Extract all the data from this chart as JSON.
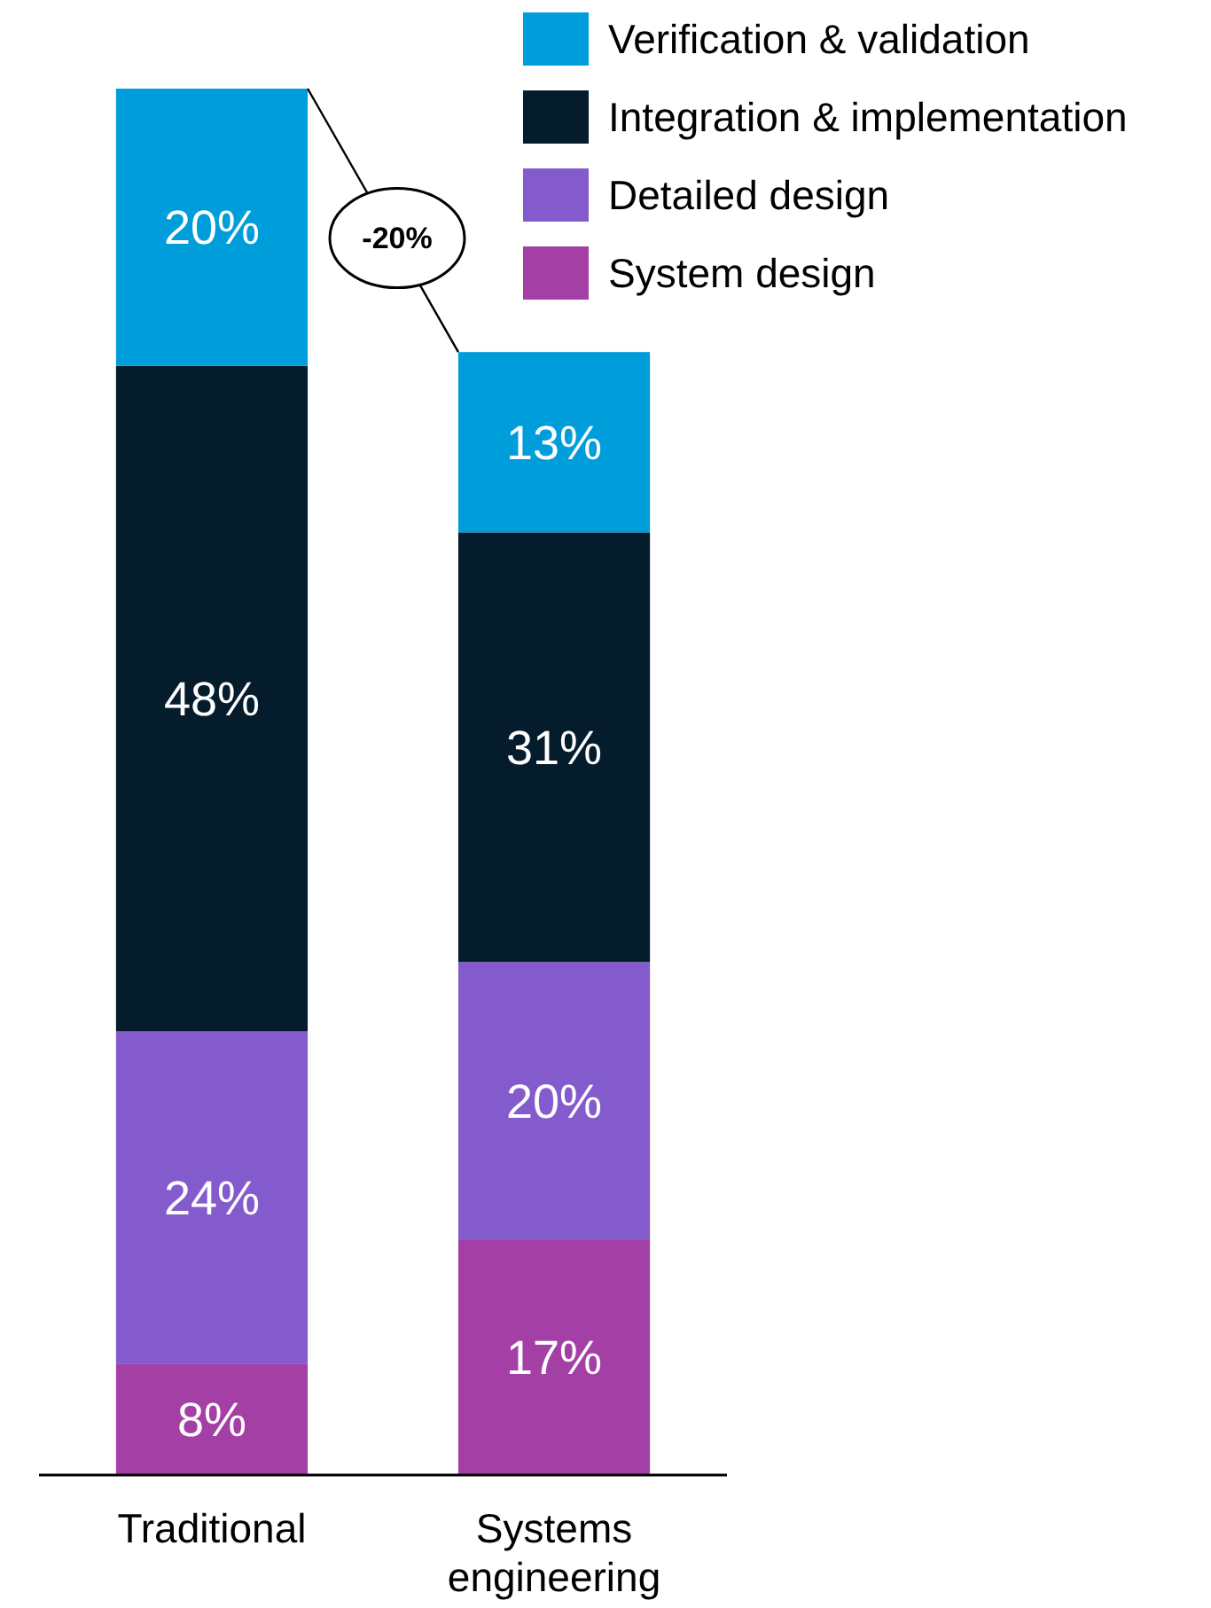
{
  "chart_data": {
    "type": "bar",
    "stacked": true,
    "categories": [
      "Traditional",
      "Systems engineering"
    ],
    "series": [
      {
        "name": "System design",
        "color": "#a43fa6",
        "values": [
          8,
          17
        ],
        "value_labels": [
          "8%",
          "17%"
        ]
      },
      {
        "name": "Detailed design",
        "color": "#835bcc",
        "values": [
          24,
          20
        ],
        "value_labels": [
          "24%",
          "20%"
        ]
      },
      {
        "name": "Integration & implementation",
        "color": "#051c2c",
        "values": [
          48,
          31
        ],
        "value_labels": [
          "48%",
          "31%"
        ]
      },
      {
        "name": "Verification & validation",
        "color": "#009ddb",
        "values": [
          20,
          13
        ],
        "value_labels": [
          "20%",
          "13%"
        ]
      }
    ],
    "ylim": [
      0,
      100
    ],
    "tick_labels": "x",
    "legend": "top right",
    "annotations": [
      "-20%"
    ]
  }
}
